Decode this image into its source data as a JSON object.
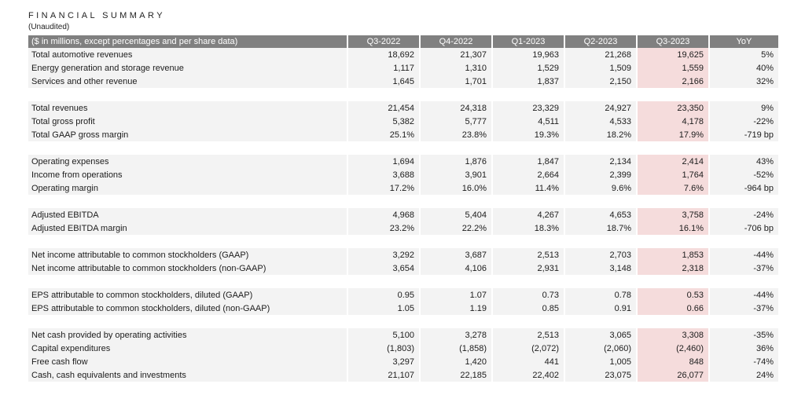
{
  "header": {
    "title": "FINANCIAL SUMMARY",
    "subtitle": "(Unaudited)"
  },
  "table": {
    "columns": [
      "($ in millions, except percentages and per share data)",
      "Q3-2022",
      "Q4-2022",
      "Q1-2023",
      "Q2-2023",
      "Q3-2023",
      "YoY"
    ],
    "highlight_color": "#f5dcdc",
    "header_color": "#808080",
    "groups": [
      {
        "rows": [
          {
            "label": "Total automotive revenues",
            "values": [
              "18,692",
              "21,307",
              "19,963",
              "21,268",
              "19,625",
              "5%"
            ]
          },
          {
            "label": "Energy generation and storage revenue",
            "values": [
              "1,117",
              "1,310",
              "1,529",
              "1,509",
              "1,559",
              "40%"
            ]
          },
          {
            "label": "Services and other revenue",
            "values": [
              "1,645",
              "1,701",
              "1,837",
              "2,150",
              "2,166",
              "32%"
            ]
          }
        ]
      },
      {
        "rows": [
          {
            "label": "Total revenues",
            "values": [
              "21,454",
              "24,318",
              "23,329",
              "24,927",
              "23,350",
              "9%"
            ]
          },
          {
            "label": "Total gross profit",
            "values": [
              "5,382",
              "5,777",
              "4,511",
              "4,533",
              "4,178",
              "-22%"
            ]
          },
          {
            "label": "Total GAAP gross margin",
            "values": [
              "25.1%",
              "23.8%",
              "19.3%",
              "18.2%",
              "17.9%",
              "-719 bp"
            ]
          }
        ]
      },
      {
        "rows": [
          {
            "label": "Operating expenses",
            "values": [
              "1,694",
              "1,876",
              "1,847",
              "2,134",
              "2,414",
              "43%"
            ]
          },
          {
            "label": "Income from operations",
            "values": [
              "3,688",
              "3,901",
              "2,664",
              "2,399",
              "1,764",
              "-52%"
            ]
          },
          {
            "label": "Operating margin",
            "values": [
              "17.2%",
              "16.0%",
              "11.4%",
              "9.6%",
              "7.6%",
              "-964 bp"
            ]
          }
        ]
      },
      {
        "rows": [
          {
            "label": "Adjusted EBITDA",
            "values": [
              "4,968",
              "5,404",
              "4,267",
              "4,653",
              "3,758",
              "-24%"
            ]
          },
          {
            "label": "Adjusted EBITDA margin",
            "values": [
              "23.2%",
              "22.2%",
              "18.3%",
              "18.7%",
              "16.1%",
              "-706 bp"
            ]
          }
        ]
      },
      {
        "rows": [
          {
            "label": "Net income attributable to common stockholders (GAAP)",
            "values": [
              "3,292",
              "3,687",
              "2,513",
              "2,703",
              "1,853",
              "-44%"
            ]
          },
          {
            "label": "Net income attributable to common stockholders (non-GAAP)",
            "values": [
              "3,654",
              "4,106",
              "2,931",
              "3,148",
              "2,318",
              "-37%"
            ]
          }
        ]
      },
      {
        "rows": [
          {
            "label": "EPS attributable to common stockholders, diluted (GAAP)",
            "values": [
              "0.95",
              "1.07",
              "0.73",
              "0.78",
              "0.53",
              "-44%"
            ]
          },
          {
            "label": "EPS attributable to common stockholders, diluted (non-GAAP)",
            "values": [
              "1.05",
              "1.19",
              "0.85",
              "0.91",
              "0.66",
              "-37%"
            ]
          }
        ]
      },
      {
        "rows": [
          {
            "label": "Net cash provided by operating activities",
            "values": [
              "5,100",
              "3,278",
              "2,513",
              "3,065",
              "3,308",
              "-35%"
            ]
          },
          {
            "label": "Capital expenditures",
            "values": [
              "(1,803)",
              "(1,858)",
              "(2,072)",
              "(2,060)",
              "(2,460)",
              "36%"
            ]
          },
          {
            "label": "Free cash flow",
            "values": [
              "3,297",
              "1,420",
              "441",
              "1,005",
              "848",
              "-74%"
            ]
          },
          {
            "label": "Cash, cash equivalents and investments",
            "values": [
              "21,107",
              "22,185",
              "22,402",
              "23,075",
              "26,077",
              "24%"
            ]
          }
        ]
      }
    ]
  }
}
